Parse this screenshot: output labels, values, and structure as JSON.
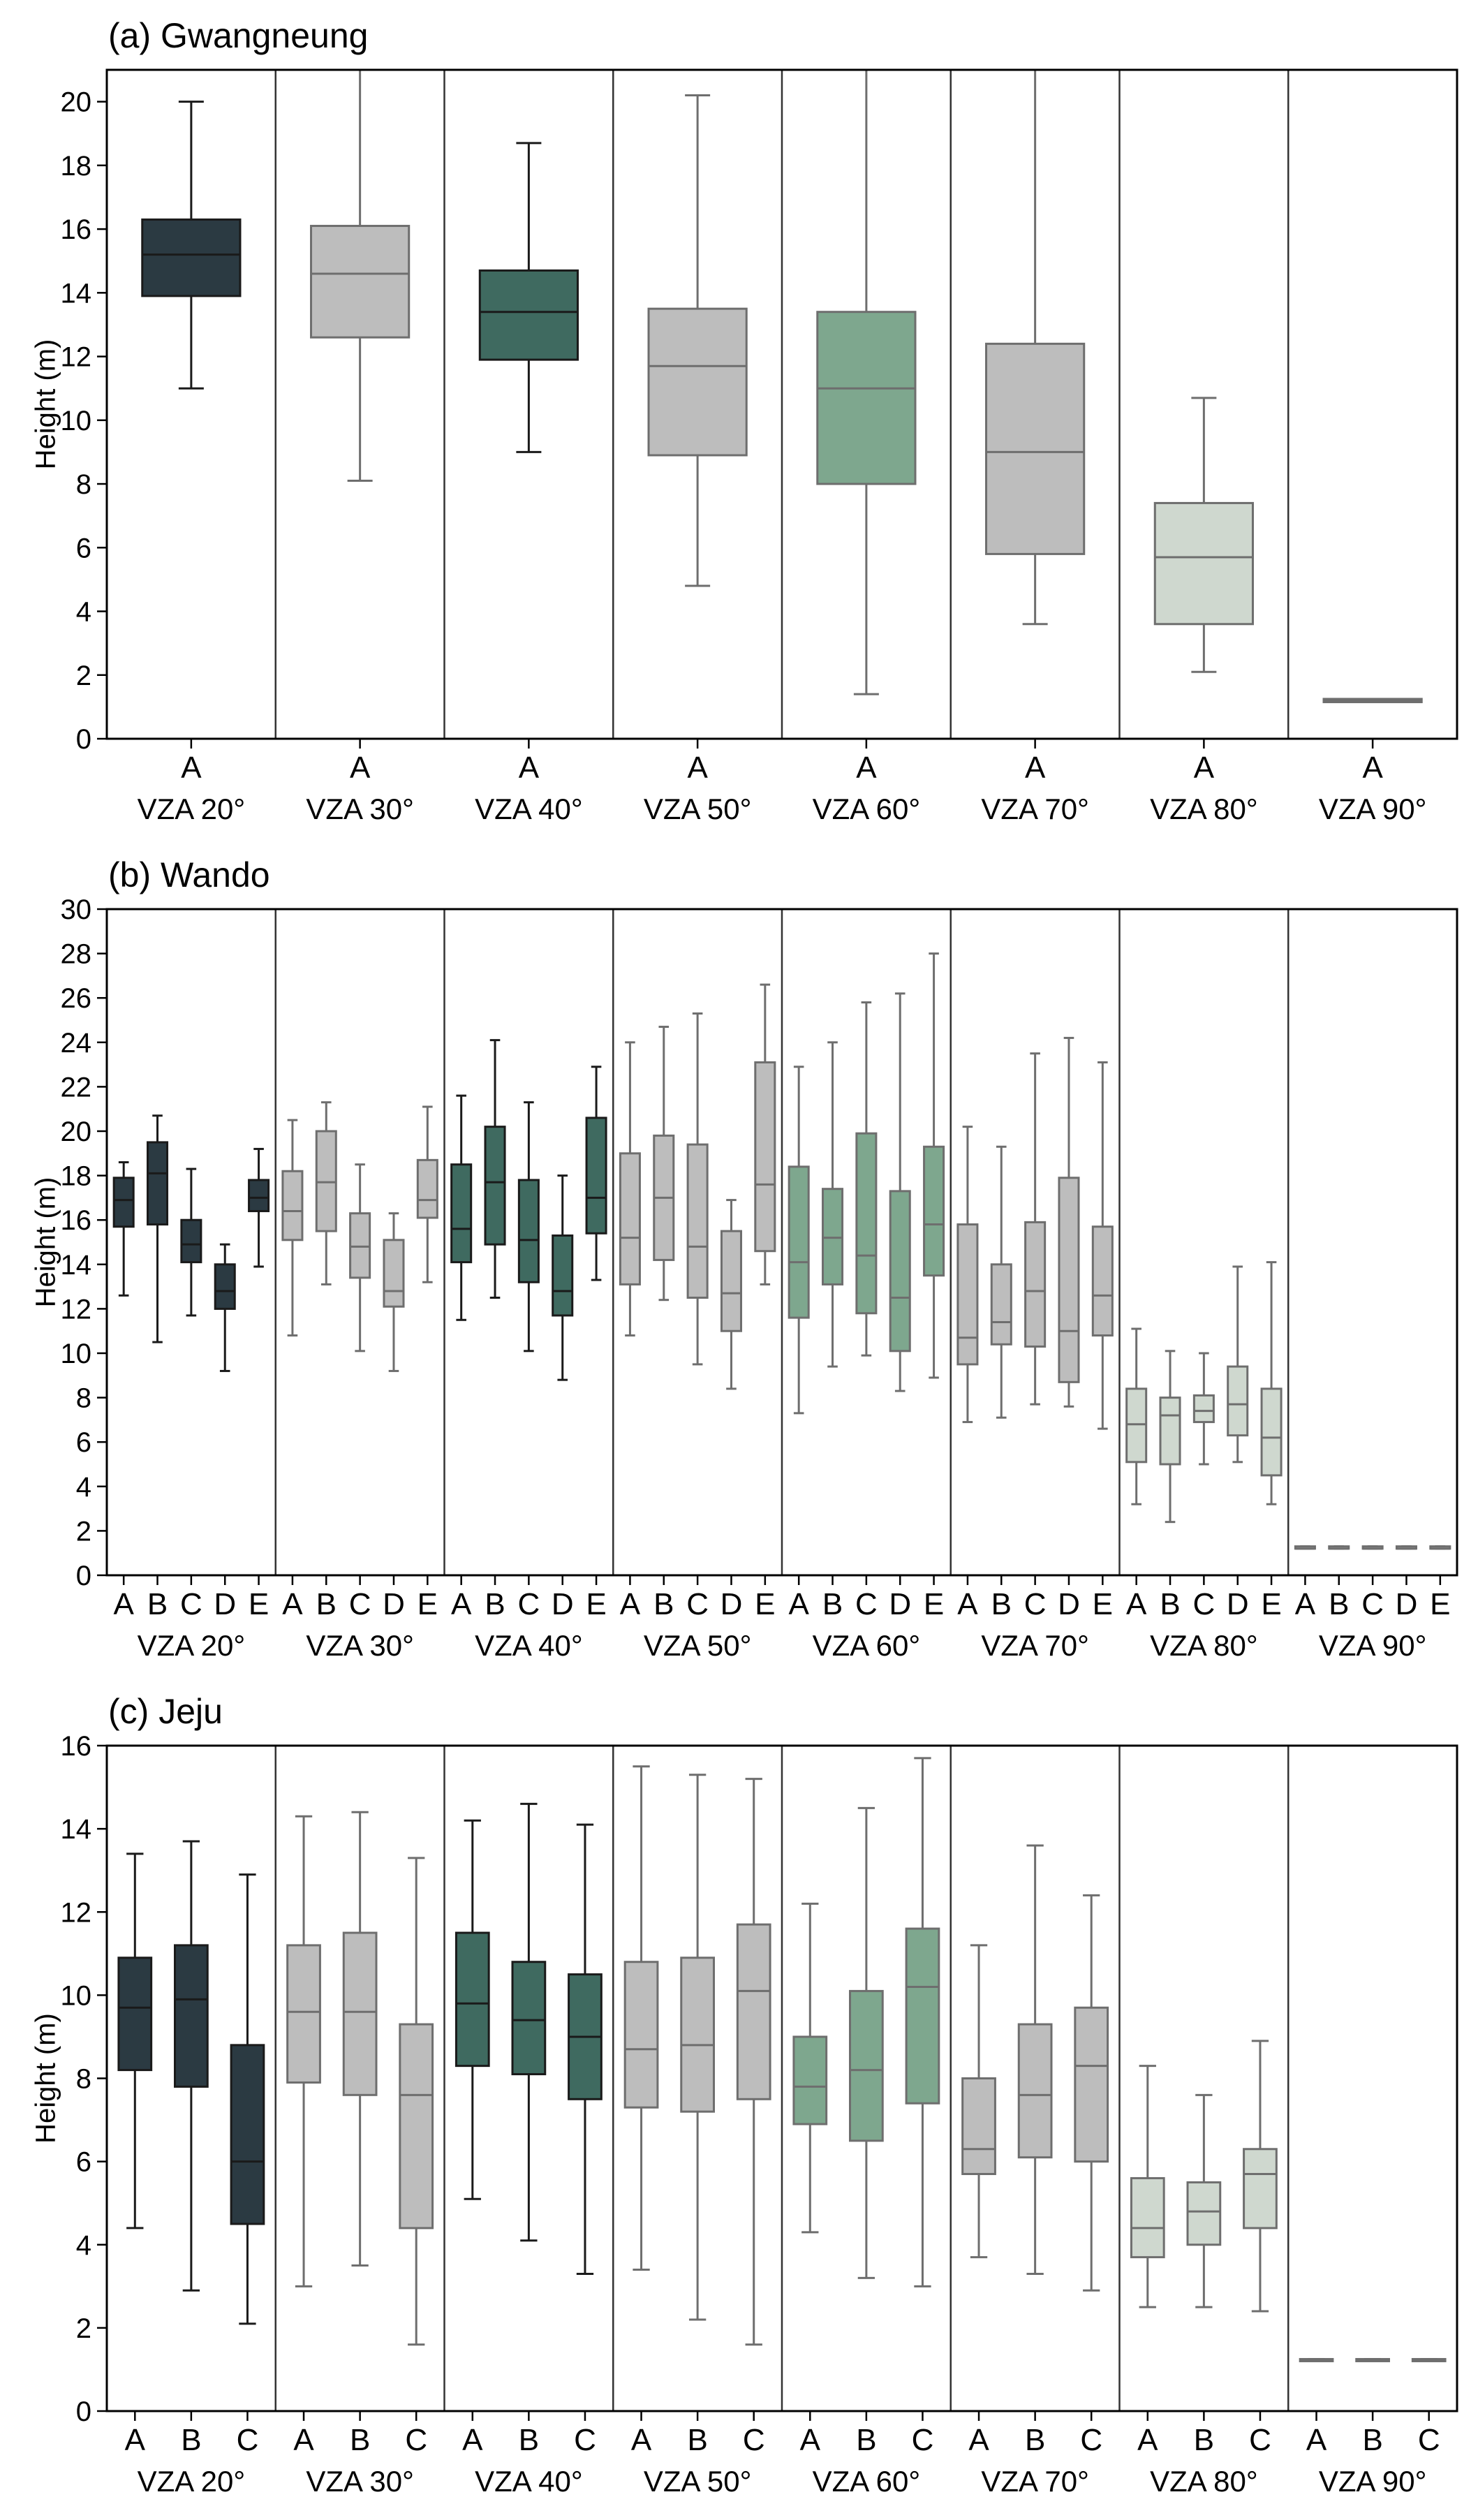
{
  "figure": {
    "colors": {
      "VZA 20°": "#2b3a42",
      "VZA 30°": "#bdbdbd",
      "VZA 40°": "#3f6a60",
      "VZA 50°": "#bdbdbd",
      "VZA 60°": "#7ea78e",
      "VZA 70°": "#bdbdbd",
      "VZA 80°": "#cfd8cf",
      "VZA 90°": "#d9d9d9"
    },
    "dark_groups": [
      "VZA 20°",
      "VZA 40°"
    ]
  },
  "chart_data": [
    {
      "type": "box",
      "title": "(a) Gwangneung",
      "ylabel": "Height (m)",
      "ylim": [
        0,
        21
      ],
      "yticks": [
        0,
        2,
        4,
        6,
        8,
        10,
        12,
        14,
        16,
        18,
        20
      ],
      "groups": [
        {
          "name": "VZA 20°",
          "boxes": [
            {
              "label": "A",
              "whislo": 11.0,
              "q1": 13.9,
              "med": 15.2,
              "q3": 16.3,
              "whishi": 20.0
            }
          ]
        },
        {
          "name": "VZA 30°",
          "boxes": [
            {
              "label": "A",
              "whislo": 8.1,
              "q1": 12.6,
              "med": 14.6,
              "q3": 16.1,
              "whishi": 21.0
            }
          ]
        },
        {
          "name": "VZA 40°",
          "boxes": [
            {
              "label": "A",
              "whislo": 9.0,
              "q1": 11.9,
              "med": 13.4,
              "q3": 14.7,
              "whishi": 18.7
            }
          ]
        },
        {
          "name": "VZA 50°",
          "boxes": [
            {
              "label": "A",
              "whislo": 4.8,
              "q1": 8.9,
              "med": 11.7,
              "q3": 13.5,
              "whishi": 20.2
            }
          ]
        },
        {
          "name": "VZA 60°",
          "boxes": [
            {
              "label": "A",
              "whislo": 1.4,
              "q1": 8.0,
              "med": 11.0,
              "q3": 13.4,
              "whishi": 21.0
            }
          ]
        },
        {
          "name": "VZA 70°",
          "boxes": [
            {
              "label": "A",
              "whislo": 3.6,
              "q1": 5.8,
              "med": 9.0,
              "q3": 12.4,
              "whishi": 21.0
            }
          ]
        },
        {
          "name": "VZA 80°",
          "boxes": [
            {
              "label": "A",
              "whislo": 2.1,
              "q1": 3.6,
              "med": 5.7,
              "q3": 7.4,
              "whishi": 10.7
            }
          ]
        },
        {
          "name": "VZA 90°",
          "boxes": [
            {
              "label": "A",
              "whislo": 1.15,
              "q1": 1.15,
              "med": 1.2,
              "q3": 1.25,
              "whishi": 1.25
            }
          ]
        }
      ]
    },
    {
      "type": "box",
      "title": "(b) Wando",
      "ylabel": "Height (m)",
      "ylim": [
        0,
        30
      ],
      "yticks": [
        0,
        2,
        4,
        6,
        8,
        10,
        12,
        14,
        16,
        18,
        20,
        22,
        24,
        26,
        28,
        30
      ],
      "groups": [
        {
          "name": "VZA 20°",
          "boxes": [
            {
              "label": "A",
              "whislo": 12.6,
              "q1": 15.7,
              "med": 16.9,
              "q3": 17.9,
              "whishi": 18.6
            },
            {
              "label": "B",
              "whislo": 10.5,
              "q1": 15.8,
              "med": 18.1,
              "q3": 19.5,
              "whishi": 20.7
            },
            {
              "label": "C",
              "whislo": 11.7,
              "q1": 14.1,
              "med": 14.9,
              "q3": 16.0,
              "whishi": 18.3
            },
            {
              "label": "D",
              "whislo": 9.2,
              "q1": 12.0,
              "med": 12.8,
              "q3": 14.0,
              "whishi": 14.9
            },
            {
              "label": "E",
              "whislo": 13.9,
              "q1": 16.4,
              "med": 17.0,
              "q3": 17.8,
              "whishi": 19.2
            }
          ]
        },
        {
          "name": "VZA 30°",
          "boxes": [
            {
              "label": "A",
              "whislo": 10.8,
              "q1": 15.1,
              "med": 16.4,
              "q3": 18.2,
              "whishi": 20.5
            },
            {
              "label": "B",
              "whislo": 13.1,
              "q1": 15.5,
              "med": 17.7,
              "q3": 20.0,
              "whishi": 21.3
            },
            {
              "label": "C",
              "whislo": 10.1,
              "q1": 13.4,
              "med": 14.8,
              "q3": 16.3,
              "whishi": 18.5
            },
            {
              "label": "D",
              "whislo": 9.2,
              "q1": 12.1,
              "med": 12.8,
              "q3": 15.1,
              "whishi": 16.3
            },
            {
              "label": "E",
              "whislo": 13.2,
              "q1": 16.1,
              "med": 16.9,
              "q3": 18.7,
              "whishi": 21.1
            }
          ]
        },
        {
          "name": "VZA 40°",
          "boxes": [
            {
              "label": "A",
              "whislo": 11.5,
              "q1": 14.1,
              "med": 15.6,
              "q3": 18.5,
              "whishi": 21.6
            },
            {
              "label": "B",
              "whislo": 12.5,
              "q1": 14.9,
              "med": 17.7,
              "q3": 20.2,
              "whishi": 24.1
            },
            {
              "label": "C",
              "whislo": 10.1,
              "q1": 13.2,
              "med": 15.1,
              "q3": 17.8,
              "whishi": 21.3
            },
            {
              "label": "D",
              "whislo": 8.8,
              "q1": 11.7,
              "med": 12.8,
              "q3": 15.3,
              "whishi": 18.0
            },
            {
              "label": "E",
              "whislo": 13.3,
              "q1": 15.4,
              "med": 17.0,
              "q3": 20.6,
              "whishi": 22.9
            }
          ]
        },
        {
          "name": "VZA 50°",
          "boxes": [
            {
              "label": "A",
              "whislo": 10.8,
              "q1": 13.1,
              "med": 15.2,
              "q3": 19.0,
              "whishi": 24.0
            },
            {
              "label": "B",
              "whislo": 12.4,
              "q1": 14.2,
              "med": 17.0,
              "q3": 19.8,
              "whishi": 24.7
            },
            {
              "label": "C",
              "whislo": 9.5,
              "q1": 12.5,
              "med": 14.8,
              "q3": 19.4,
              "whishi": 25.3
            },
            {
              "label": "D",
              "whislo": 8.4,
              "q1": 11.0,
              "med": 12.7,
              "q3": 15.5,
              "whishi": 16.9
            },
            {
              "label": "E",
              "whislo": 13.1,
              "q1": 14.6,
              "med": 17.6,
              "q3": 23.1,
              "whishi": 26.6
            }
          ]
        },
        {
          "name": "VZA 60°",
          "boxes": [
            {
              "label": "A",
              "whislo": 7.3,
              "q1": 11.6,
              "med": 14.1,
              "q3": 18.4,
              "whishi": 22.9
            },
            {
              "label": "B",
              "whislo": 9.4,
              "q1": 13.1,
              "med": 15.2,
              "q3": 17.4,
              "whishi": 24.0
            },
            {
              "label": "C",
              "whislo": 9.9,
              "q1": 11.8,
              "med": 14.4,
              "q3": 19.9,
              "whishi": 25.8
            },
            {
              "label": "D",
              "whislo": 8.3,
              "q1": 10.1,
              "med": 12.5,
              "q3": 17.3,
              "whishi": 26.2
            },
            {
              "label": "E",
              "whislo": 8.9,
              "q1": 13.5,
              "med": 15.8,
              "q3": 19.3,
              "whishi": 28.0
            }
          ]
        },
        {
          "name": "VZA 70°",
          "boxes": [
            {
              "label": "A",
              "whislo": 6.9,
              "q1": 9.5,
              "med": 10.7,
              "q3": 15.8,
              "whishi": 20.2
            },
            {
              "label": "B",
              "whislo": 7.1,
              "q1": 10.4,
              "med": 11.4,
              "q3": 14.0,
              "whishi": 19.3
            },
            {
              "label": "C",
              "whislo": 7.7,
              "q1": 10.3,
              "med": 12.8,
              "q3": 15.9,
              "whishi": 23.5
            },
            {
              "label": "D",
              "whislo": 7.6,
              "q1": 8.7,
              "med": 11.0,
              "q3": 17.9,
              "whishi": 24.2
            },
            {
              "label": "E",
              "whislo": 6.6,
              "q1": 10.8,
              "med": 12.6,
              "q3": 15.7,
              "whishi": 23.1
            }
          ]
        },
        {
          "name": "VZA 80°",
          "boxes": [
            {
              "label": "A",
              "whislo": 3.2,
              "q1": 5.1,
              "med": 6.8,
              "q3": 8.4,
              "whishi": 11.1
            },
            {
              "label": "B",
              "whislo": 2.4,
              "q1": 5.0,
              "med": 7.2,
              "q3": 8.0,
              "whishi": 10.1
            },
            {
              "label": "C",
              "whislo": 5.0,
              "q1": 6.9,
              "med": 7.4,
              "q3": 8.1,
              "whishi": 10.0
            },
            {
              "label": "D",
              "whislo": 5.1,
              "q1": 6.3,
              "med": 7.7,
              "q3": 9.4,
              "whishi": 13.9
            },
            {
              "label": "E",
              "whislo": 3.2,
              "q1": 4.5,
              "med": 6.2,
              "q3": 8.4,
              "whishi": 14.1
            }
          ]
        },
        {
          "name": "VZA 90°",
          "boxes": [
            {
              "label": "A",
              "whislo": 1.2,
              "q1": 1.2,
              "med": 1.2,
              "q3": 1.3,
              "whishi": 1.3
            },
            {
              "label": "B",
              "whislo": 1.2,
              "q1": 1.2,
              "med": 1.2,
              "q3": 1.3,
              "whishi": 1.3
            },
            {
              "label": "C",
              "whislo": 1.2,
              "q1": 1.2,
              "med": 1.2,
              "q3": 1.3,
              "whishi": 1.3
            },
            {
              "label": "D",
              "whislo": 1.2,
              "q1": 1.2,
              "med": 1.2,
              "q3": 1.3,
              "whishi": 1.3
            },
            {
              "label": "E",
              "whislo": 1.2,
              "q1": 1.2,
              "med": 1.2,
              "q3": 1.3,
              "whishi": 1.3
            }
          ]
        }
      ]
    },
    {
      "type": "box",
      "title": "(c) Jeju",
      "ylabel": "Height (m)",
      "ylim": [
        0,
        16
      ],
      "yticks": [
        0,
        2,
        4,
        6,
        8,
        10,
        12,
        14,
        16
      ],
      "groups": [
        {
          "name": "VZA 20°",
          "boxes": [
            {
              "label": "A",
              "whislo": 4.4,
              "q1": 8.2,
              "med": 9.7,
              "q3": 10.9,
              "whishi": 13.4
            },
            {
              "label": "B",
              "whislo": 2.9,
              "q1": 7.8,
              "med": 9.9,
              "q3": 11.2,
              "whishi": 13.7
            },
            {
              "label": "C",
              "whislo": 2.1,
              "q1": 4.5,
              "med": 6.0,
              "q3": 8.8,
              "whishi": 12.9
            }
          ]
        },
        {
          "name": "VZA 30°",
          "boxes": [
            {
              "label": "A",
              "whislo": 3.0,
              "q1": 7.9,
              "med": 9.6,
              "q3": 11.2,
              "whishi": 14.3
            },
            {
              "label": "B",
              "whislo": 3.5,
              "q1": 7.6,
              "med": 9.6,
              "q3": 11.5,
              "whishi": 14.4
            },
            {
              "label": "C",
              "whislo": 1.6,
              "q1": 4.4,
              "med": 7.6,
              "q3": 9.3,
              "whishi": 13.3
            }
          ]
        },
        {
          "name": "VZA 40°",
          "boxes": [
            {
              "label": "A",
              "whislo": 5.1,
              "q1": 8.3,
              "med": 9.8,
              "q3": 11.5,
              "whishi": 14.2
            },
            {
              "label": "B",
              "whislo": 4.1,
              "q1": 8.1,
              "med": 9.4,
              "q3": 10.8,
              "whishi": 14.6
            },
            {
              "label": "C",
              "whislo": 3.3,
              "q1": 7.5,
              "med": 9.0,
              "q3": 10.5,
              "whishi": 14.1
            }
          ]
        },
        {
          "name": "VZA 50°",
          "boxes": [
            {
              "label": "A",
              "whislo": 3.4,
              "q1": 7.3,
              "med": 8.7,
              "q3": 10.8,
              "whishi": 15.5
            },
            {
              "label": "B",
              "whislo": 2.2,
              "q1": 7.2,
              "med": 8.8,
              "q3": 10.9,
              "whishi": 15.3
            },
            {
              "label": "C",
              "whislo": 1.6,
              "q1": 7.5,
              "med": 10.1,
              "q3": 11.7,
              "whishi": 15.2
            }
          ]
        },
        {
          "name": "VZA 60°",
          "boxes": [
            {
              "label": "A",
              "whislo": 4.3,
              "q1": 6.9,
              "med": 7.8,
              "q3": 9.0,
              "whishi": 12.2
            },
            {
              "label": "B",
              "whislo": 3.2,
              "q1": 6.5,
              "med": 8.2,
              "q3": 10.1,
              "whishi": 14.5
            },
            {
              "label": "C",
              "whislo": 3.0,
              "q1": 7.4,
              "med": 10.2,
              "q3": 11.6,
              "whishi": 15.7
            }
          ]
        },
        {
          "name": "VZA 70°",
          "boxes": [
            {
              "label": "A",
              "whislo": 3.7,
              "q1": 5.7,
              "med": 6.3,
              "q3": 8.0,
              "whishi": 11.2
            },
            {
              "label": "B",
              "whislo": 3.3,
              "q1": 6.1,
              "med": 7.6,
              "q3": 9.3,
              "whishi": 13.6
            },
            {
              "label": "C",
              "whislo": 2.9,
              "q1": 6.0,
              "med": 8.3,
              "q3": 9.7,
              "whishi": 12.4
            }
          ]
        },
        {
          "name": "VZA 80°",
          "boxes": [
            {
              "label": "A",
              "whislo": 2.5,
              "q1": 3.7,
              "med": 4.4,
              "q3": 5.6,
              "whishi": 8.3
            },
            {
              "label": "B",
              "whislo": 2.5,
              "q1": 4.0,
              "med": 4.8,
              "q3": 5.5,
              "whishi": 7.6
            },
            {
              "label": "C",
              "whislo": 2.4,
              "q1": 4.4,
              "med": 5.7,
              "q3": 6.3,
              "whishi": 8.9
            }
          ]
        },
        {
          "name": "VZA 90°",
          "boxes": [
            {
              "label": "A",
              "whislo": 1.2,
              "q1": 1.2,
              "med": 1.2,
              "q3": 1.25,
              "whishi": 1.25
            },
            {
              "label": "B",
              "whislo": 1.2,
              "q1": 1.2,
              "med": 1.2,
              "q3": 1.25,
              "whishi": 1.25
            },
            {
              "label": "C",
              "whislo": 1.2,
              "q1": 1.2,
              "med": 1.2,
              "q3": 1.25,
              "whishi": 1.25
            }
          ]
        }
      ]
    }
  ]
}
